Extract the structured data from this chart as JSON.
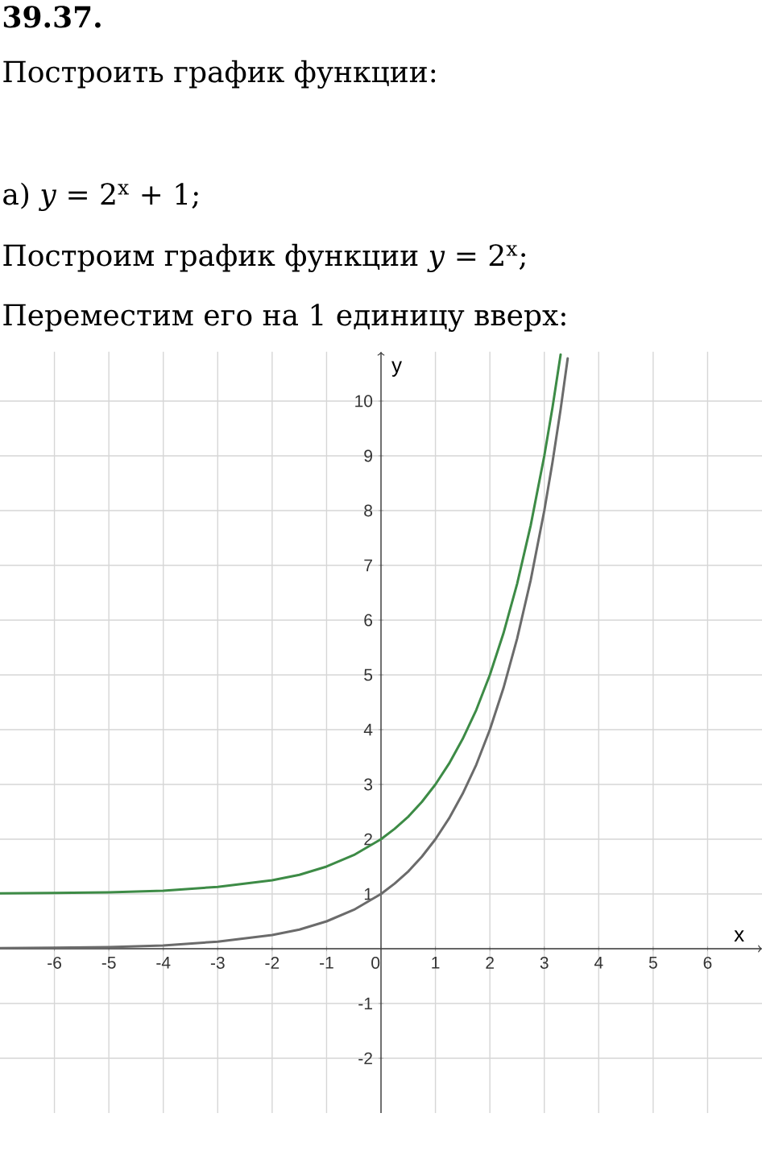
{
  "chart_data": {
    "type": "line",
    "title": "39.37.",
    "subtitle": "Построить график функции:",
    "annotations": [
      "а) *y* = 2$^{x}$ + 1;",
      "Построим график функции *y* = 2$^{x}$;",
      "Переместим его на 1 единицу вверх:"
    ],
    "xlabel": "x",
    "ylabel": "y",
    "xlim": [
      -7,
      7
    ],
    "ylim": [
      -3,
      10.9
    ],
    "xticks": [
      -6,
      -5,
      -4,
      -3,
      -2,
      -1,
      0,
      1,
      2,
      3,
      4,
      5,
      6
    ],
    "yticks": [
      -2,
      -1,
      1,
      2,
      3,
      4,
      5,
      6,
      7,
      8,
      9,
      10
    ],
    "grid": true,
    "marker": "none",
    "line_style": "solid",
    "series": [
      {
        "color": "#6b6b6b",
        "x": [
          -7,
          -6,
          -5,
          -4,
          -3,
          -2,
          -1.5,
          -1,
          -0.5,
          0,
          0.25,
          0.5,
          0.75,
          1,
          1.25,
          1.5,
          1.75,
          2,
          2.25,
          2.5,
          2.75,
          3,
          3.15,
          3.3,
          3.43
        ],
        "values": [
          0.01,
          0.02,
          0.03,
          0.06,
          0.13,
          0.25,
          0.35,
          0.5,
          0.71,
          1,
          1.19,
          1.41,
          1.68,
          2,
          2.38,
          2.83,
          3.36,
          4,
          4.76,
          5.66,
          6.73,
          8,
          8.88,
          9.85,
          10.78
        ]
      },
      {
        "color": "#3d8b46",
        "x": [
          -7,
          -6,
          -5,
          -4,
          -3,
          -2,
          -1.5,
          -1,
          -0.5,
          0,
          0.25,
          0.5,
          0.75,
          1,
          1.25,
          1.5,
          1.75,
          2,
          2.25,
          2.5,
          2.75,
          3,
          3.15,
          3.3
        ],
        "values": [
          1.01,
          1.02,
          1.03,
          1.06,
          1.13,
          1.25,
          1.35,
          1.5,
          1.71,
          2,
          2.19,
          2.41,
          2.68,
          3,
          3.38,
          3.83,
          4.36,
          5,
          5.76,
          6.66,
          7.73,
          9,
          9.88,
          10.85
        ]
      }
    ]
  }
}
